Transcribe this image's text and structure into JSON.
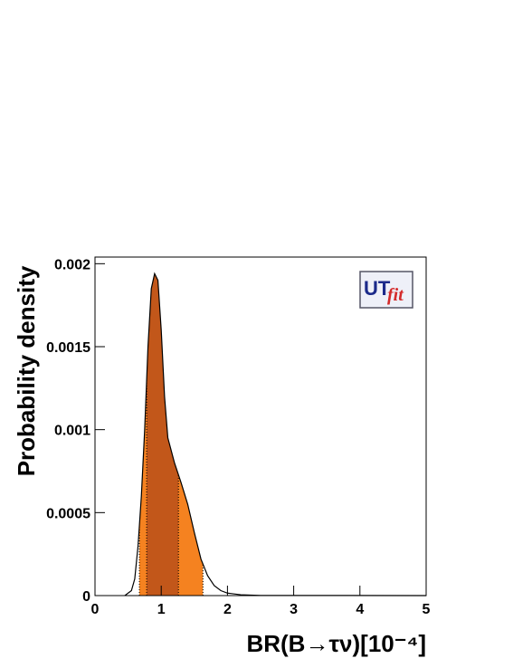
{
  "chart_data": {
    "type": "area",
    "y_label": "Probability density",
    "x_label": "BR(B→τν)[10⁻⁴]",
    "logo": [
      "UT",
      "fit"
    ],
    "x": [
      0.45,
      0.55,
      0.6,
      0.65,
      0.7,
      0.75,
      0.8,
      0.85,
      0.9,
      0.95,
      1.0,
      1.05,
      1.1,
      1.2,
      1.3,
      1.4,
      1.5,
      1.6,
      1.7,
      1.8,
      1.9,
      2.0,
      2.2,
      2.5,
      5.0
    ],
    "values": [
      0,
      3e-05,
      0.0001,
      0.0003,
      0.0006,
      0.001,
      0.0015,
      0.00185,
      0.00194,
      0.0019,
      0.0016,
      0.0012,
      0.00095,
      0.0008,
      0.00068,
      0.00055,
      0.00038,
      0.00022,
      0.00012,
      6e-05,
      3e-05,
      1.5e-05,
      5e-06,
      1e-06,
      0
    ],
    "color": "#000000",
    "intervals": [
      {
        "range": [
          0.67,
          1.63
        ],
        "color": "#f58220"
      },
      {
        "range": [
          0.78,
          1.26
        ],
        "color": "#c2571a"
      }
    ],
    "xlim": [
      0,
      5
    ],
    "xticks": [
      0,
      1,
      2,
      3,
      4,
      5
    ],
    "ylim": [
      0,
      0.00204
    ],
    "yticks": [
      0,
      0.0005,
      0.001,
      0.0015,
      0.002
    ]
  }
}
